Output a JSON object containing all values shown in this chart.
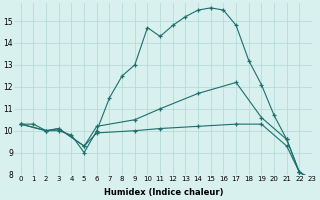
{
  "title": "",
  "xlabel": "Humidex (Indice chaleur)",
  "bg_color": "#d8f0ee",
  "line_color": "#1e6e6e",
  "grid_color": "#b0d8d4",
  "xlim": [
    -0.5,
    23
  ],
  "ylim": [
    8,
    15.8
  ],
  "xticks": [
    0,
    1,
    2,
    3,
    4,
    5,
    6,
    7,
    8,
    9,
    10,
    11,
    12,
    13,
    14,
    15,
    16,
    17,
    18,
    19,
    20,
    21,
    22,
    23
  ],
  "yticks": [
    8,
    9,
    10,
    11,
    12,
    13,
    14,
    15
  ],
  "line1_x": [
    0,
    1,
    2,
    3,
    4,
    5,
    6,
    7,
    8,
    9,
    10,
    11,
    12,
    13,
    14,
    15,
    16,
    17,
    18,
    19,
    20,
    21,
    22,
    23
  ],
  "line1_y": [
    10.3,
    10.3,
    10.0,
    10.0,
    9.8,
    9.0,
    10.0,
    11.5,
    12.5,
    13.0,
    14.7,
    14.3,
    14.8,
    15.2,
    15.5,
    15.6,
    15.5,
    14.8,
    13.2,
    12.1,
    10.7,
    9.6,
    8.1,
    7.8
  ],
  "line2_x": [
    0,
    2,
    3,
    5,
    6,
    9,
    11,
    14,
    17,
    19,
    21,
    22,
    23
  ],
  "line2_y": [
    10.3,
    10.0,
    10.1,
    9.3,
    10.2,
    10.5,
    11.0,
    11.7,
    12.2,
    10.6,
    9.6,
    8.1,
    7.8
  ],
  "line3_x": [
    0,
    2,
    3,
    5,
    6,
    9,
    11,
    14,
    17,
    19,
    21,
    22,
    23
  ],
  "line3_y": [
    10.3,
    10.0,
    10.1,
    9.3,
    9.9,
    10.0,
    10.1,
    10.2,
    10.3,
    10.3,
    9.3,
    8.1,
    7.8
  ]
}
